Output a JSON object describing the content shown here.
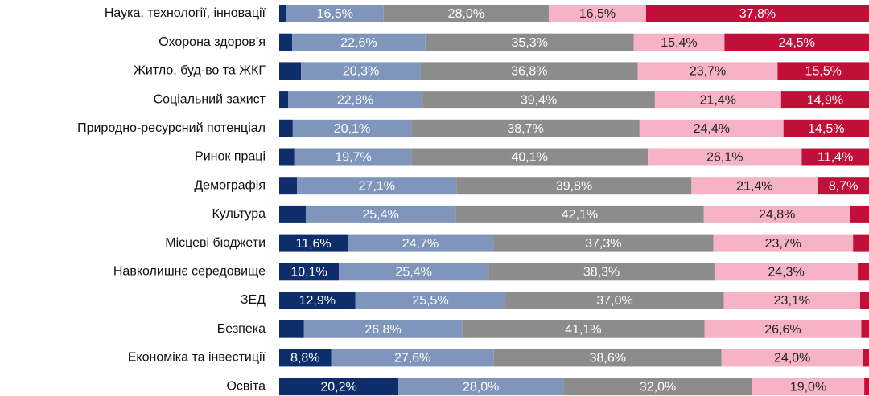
{
  "chart_data": {
    "type": "bar",
    "orientation": "horizontal",
    "stacked": true,
    "categories": [
      "Наука, технології, інновації",
      "Охорона здоров’я",
      "Житло, буд-во та ЖКГ",
      "Соціальний захист",
      "Природно-ресурсний потенціал",
      "Ринок праці",
      "Демографія",
      "Культура",
      "Місцеві бюджети",
      "Навколишнє середовище",
      "ЗЕД",
      "Безпека",
      "Економіка та інвестиції",
      "Освіта"
    ],
    "xlim": [
      0,
      100
    ],
    "series": [
      {
        "color": "#0e2d6b",
        "values": [
          1.2,
          2.2,
          3.7,
          1.5,
          2.3,
          2.7,
          3.0,
          4.5,
          11.6,
          10.1,
          12.9,
          4.2,
          8.8,
          20.2
        ],
        "value_labels": [
          null,
          null,
          null,
          null,
          null,
          null,
          null,
          null,
          "11,6%",
          "10,1%",
          "12,9%",
          null,
          "8,8%",
          "20,2%"
        ]
      },
      {
        "color": "#8095bb",
        "values": [
          16.5,
          22.6,
          20.3,
          22.8,
          20.1,
          19.7,
          27.1,
          25.4,
          24.7,
          25.4,
          25.5,
          26.8,
          27.6,
          28.0
        ],
        "value_labels": [
          "16,5%",
          "22,6%",
          "20,3%",
          "22,8%",
          "20,1%",
          "19,7%",
          "27,1%",
          "25,4%",
          "24,7%",
          "25,4%",
          "25,5%",
          "26,8%",
          "27,6%",
          "28,0%"
        ]
      },
      {
        "color": "#8c8c8c",
        "values": [
          28.0,
          35.3,
          36.8,
          39.4,
          38.7,
          40.1,
          39.8,
          42.1,
          37.3,
          38.3,
          37.0,
          41.1,
          38.6,
          32.0
        ],
        "value_labels": [
          "28,0%",
          "35,3%",
          "36,8%",
          "39,4%",
          "38,7%",
          "40,1%",
          "39,8%",
          "42,1%",
          "37,3%",
          "38,3%",
          "37,0%",
          "41,1%",
          "38,6%",
          "32,0%"
        ]
      },
      {
        "color": "#f6b3c5",
        "values": [
          16.5,
          15.4,
          23.7,
          21.4,
          24.4,
          26.1,
          21.4,
          24.8,
          23.7,
          24.3,
          23.1,
          26.6,
          24.0,
          19.0
        ],
        "value_labels": [
          "16,5%",
          "15,4%",
          "23,7%",
          "21,4%",
          "24,4%",
          "26,1%",
          "21,4%",
          "24,8%",
          "23,7%",
          "24,3%",
          "23,1%",
          "26,6%",
          "24,0%",
          "19,0%"
        ]
      },
      {
        "color": "#c0103a",
        "values": [
          37.8,
          24.5,
          15.5,
          14.9,
          14.5,
          11.4,
          8.7,
          3.2,
          2.7,
          1.9,
          1.5,
          1.3,
          1.0,
          0.8
        ],
        "value_labels": [
          "37,8%",
          "24,5%",
          "15,5%",
          "14,9%",
          "14,5%",
          "11,4%",
          "8,7%",
          null,
          null,
          null,
          null,
          null,
          null,
          null
        ]
      }
    ]
  }
}
